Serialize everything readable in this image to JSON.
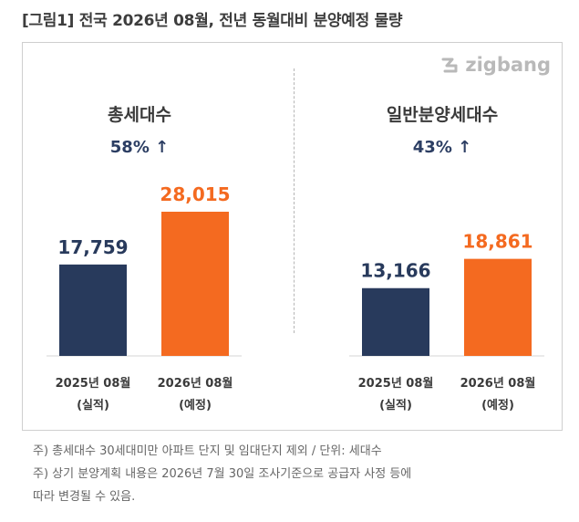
{
  "header": {
    "title": "[그림1] 전국 2026년 08월, 전년 동월대비 분양예정 물량"
  },
  "logo": {
    "text": "zigbang",
    "icon": "zigbang-logo-icon",
    "color": "#b9b9b9"
  },
  "chart_data": [
    {
      "type": "bar",
      "title": "총세대수",
      "change": "58% ↑",
      "categories": [
        "2025년 08월",
        "2026년 08월"
      ],
      "category_notes": [
        "(실적)",
        "(예정)"
      ],
      "values": [
        17759,
        28015
      ],
      "data_labels": [
        "17,759",
        "28,015"
      ],
      "colors": [
        "#283a5c",
        "#f46a20"
      ],
      "ylim": [
        0,
        30000
      ]
    },
    {
      "type": "bar",
      "title": "일반분양세대수",
      "change": "43% ↑",
      "categories": [
        "2025년 08월",
        "2026년 08월"
      ],
      "category_notes": [
        "(실적)",
        "(예정)"
      ],
      "values": [
        13166,
        18861
      ],
      "data_labels": [
        "13,166",
        "18,861"
      ],
      "colors": [
        "#283a5c",
        "#f46a20"
      ],
      "ylim": [
        0,
        30000
      ]
    }
  ],
  "footnotes": [
    "주) 총세대수 30세대미만 아파트  단지 및 임대단지 제외 / 단위: 세대수",
    "주) 상기 분양계획 내용은 2026년 7월 30일 조사기준으로 공급자 사정 등에",
    "따라 변경될 수 있음."
  ],
  "colors": {
    "navy": "#283a5c",
    "orange": "#f46a20",
    "change_text": "#2c3e63"
  }
}
